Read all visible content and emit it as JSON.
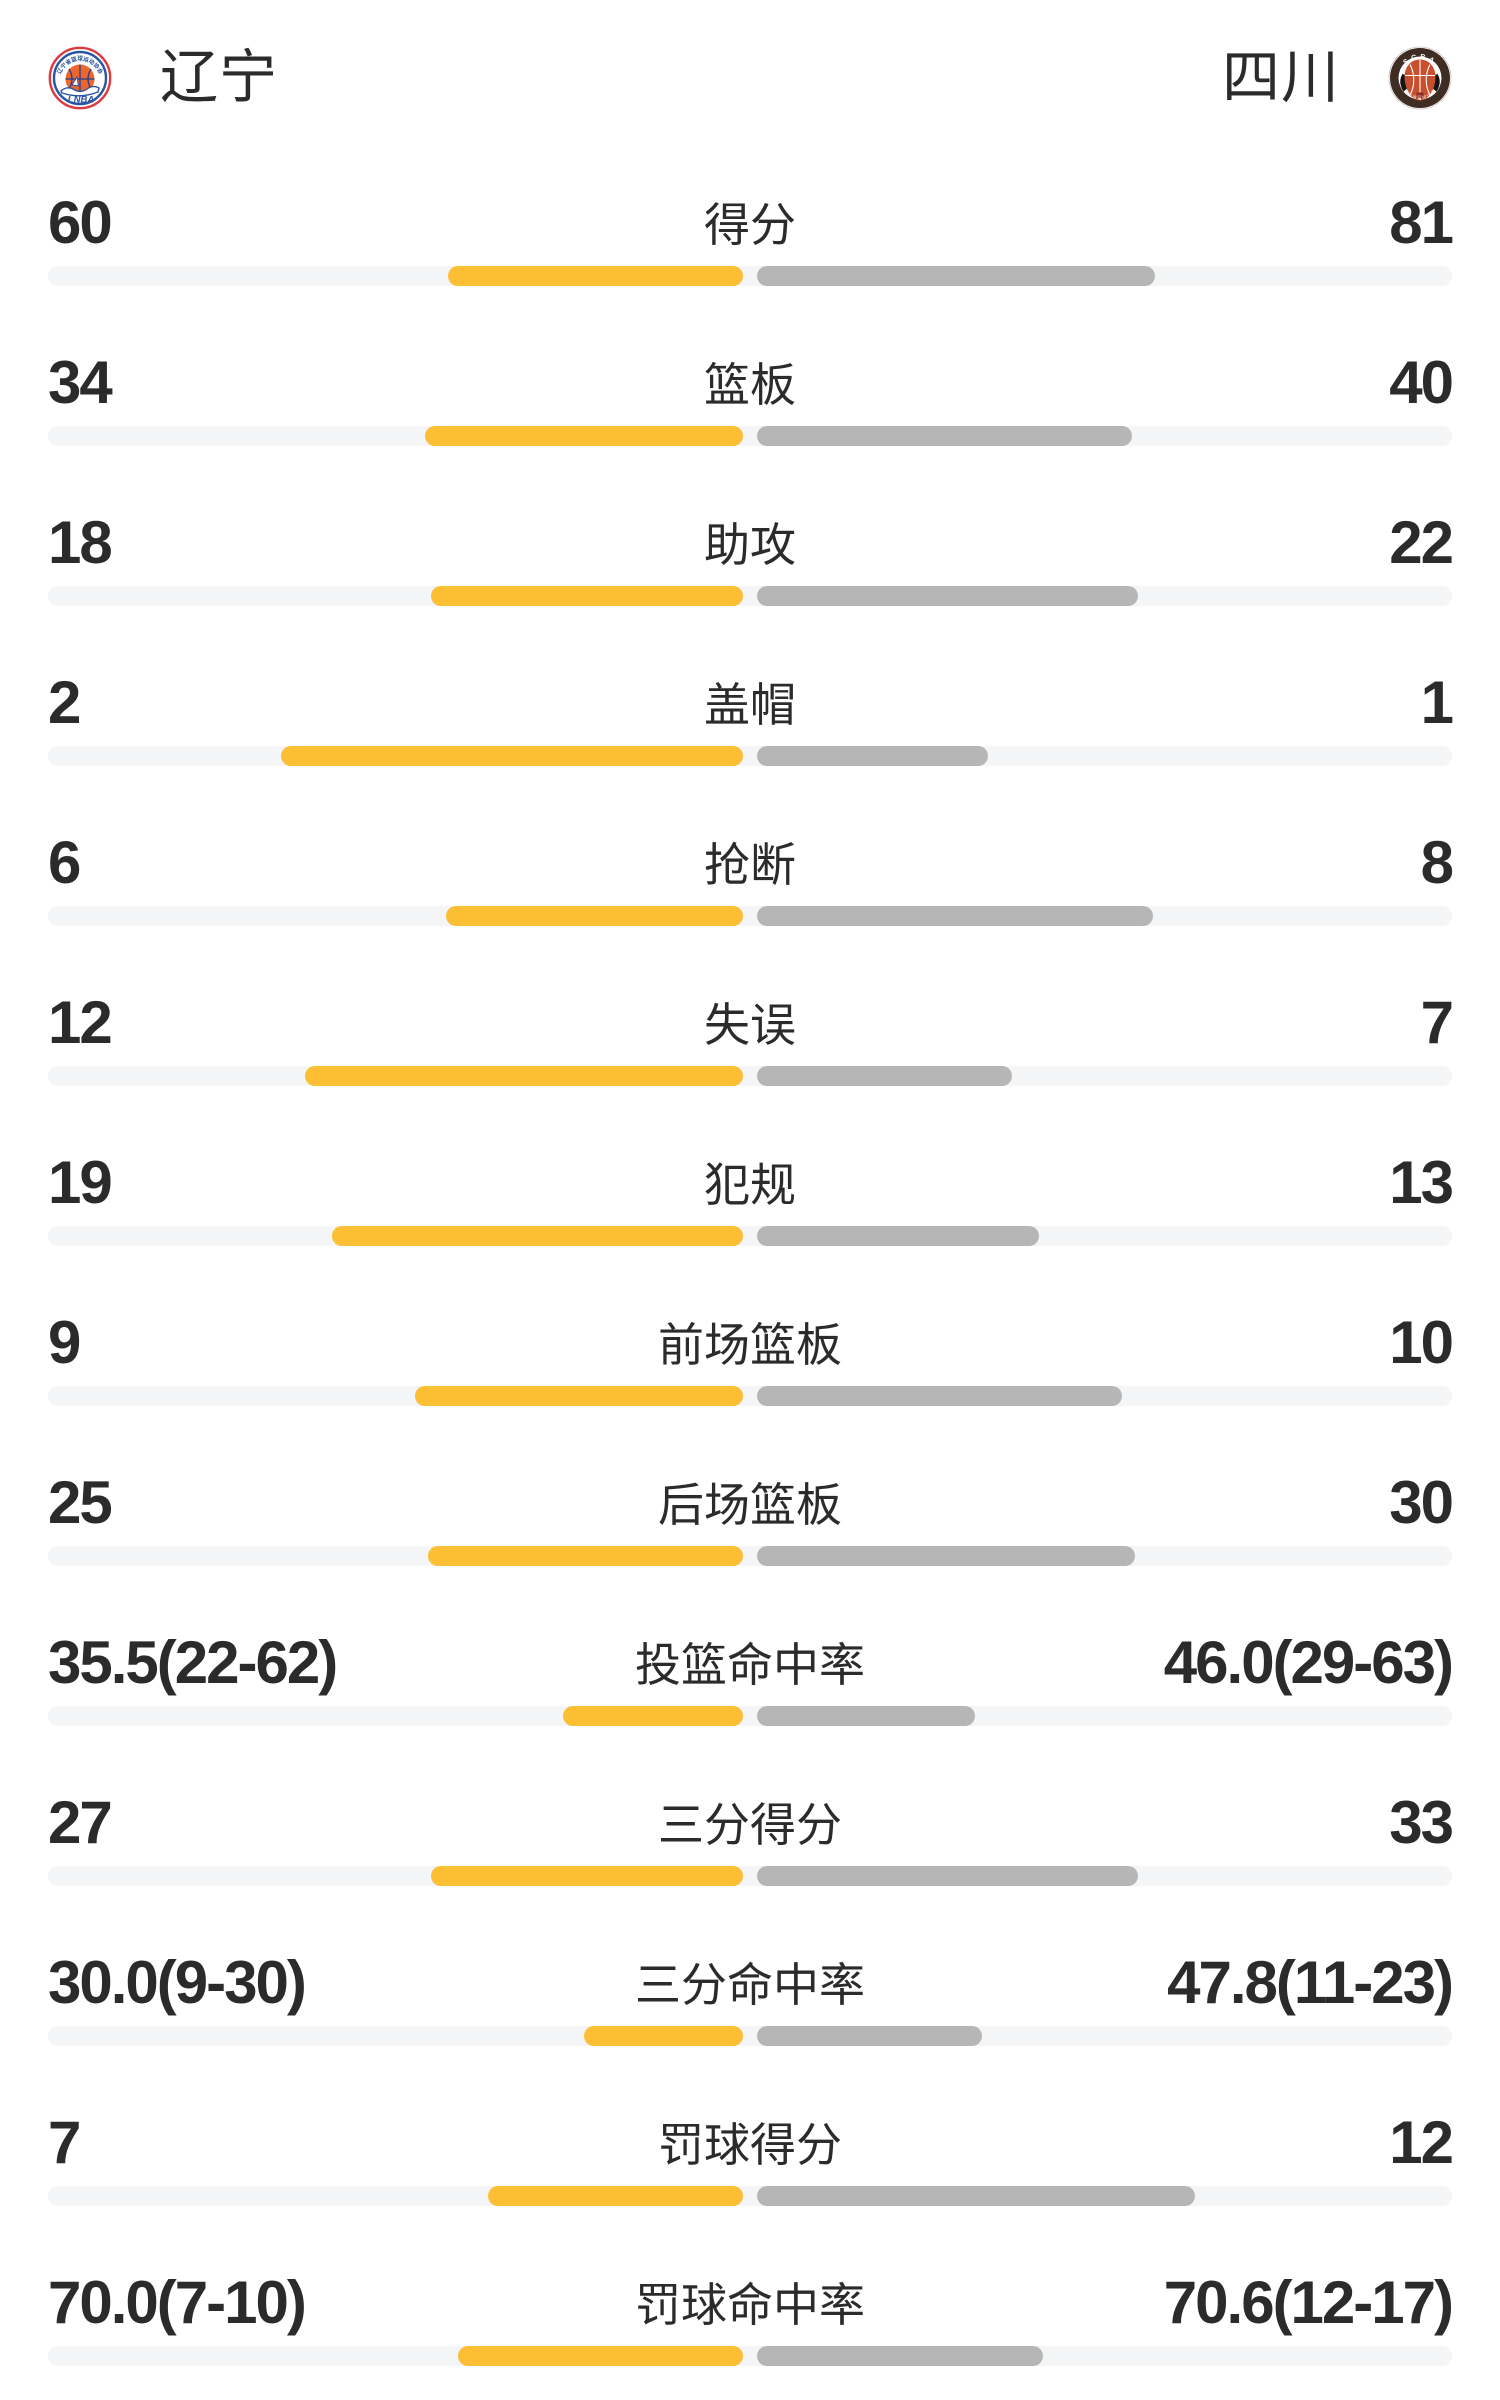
{
  "header": {
    "home": {
      "name": "辽宁",
      "logo": "lnba-liaoning-badge",
      "logo_text": "LNBA",
      "logo_arc_text": "辽宁省篮球运动协会"
    },
    "away": {
      "name": "四川",
      "logo": "scba-sichuan-badge",
      "logo_text": "SCBA",
      "logo_arc_text": "四川省篮球协会"
    }
  },
  "colors": {
    "home_bar": "#fcbe33",
    "away_bar": "#b6b6b6",
    "track": "#f4f5f7",
    "text_primary": "#2b2b2b",
    "background": "#ffffff"
  },
  "chart_data": {
    "type": "bar",
    "layout": "mirrored-horizontal-pairs-from-center",
    "home_team": "辽宁",
    "away_team": "四川",
    "legend_position": "none",
    "grid": false,
    "rows": [
      {
        "label": "得分",
        "home": "60",
        "away": "81",
        "home_num": 60,
        "away_num": 81,
        "home_pct": 21.01,
        "away_pct": 28.36
      },
      {
        "label": "篮板",
        "home": "34",
        "away": "40",
        "home_num": 34,
        "away_num": 40,
        "home_pct": 22.68,
        "away_pct": 26.68
      },
      {
        "label": "助攻",
        "home": "18",
        "away": "22",
        "home_num": 18,
        "away_num": 22,
        "home_pct": 22.21,
        "away_pct": 27.15
      },
      {
        "label": "盖帽",
        "home": "2",
        "away": "1",
        "home_num": 2,
        "away_num": 1,
        "home_pct": 32.91,
        "away_pct": 16.45
      },
      {
        "label": "抢断",
        "home": "6",
        "away": "8",
        "home_num": 6,
        "away_num": 8,
        "home_pct": 21.15,
        "away_pct": 28.21
      },
      {
        "label": "失误",
        "home": "12",
        "away": "7",
        "home_num": 12,
        "away_num": 7,
        "home_pct": 31.17,
        "away_pct": 18.18
      },
      {
        "label": "犯规",
        "home": "19",
        "away": "13",
        "home_num": 19,
        "away_num": 13,
        "home_pct": 29.31,
        "away_pct": 20.06
      },
      {
        "label": "前场篮板",
        "home": "9",
        "away": "10",
        "home_num": 9,
        "away_num": 10,
        "home_pct": 23.38,
        "away_pct": 25.98
      },
      {
        "label": "后场篮板",
        "home": "25",
        "away": "30",
        "home_num": 25,
        "away_num": 30,
        "home_pct": 22.44,
        "away_pct": 26.93
      },
      {
        "label": "投篮命中率",
        "home": "35.5(22-62)",
        "away": "46.0(29-63)",
        "home_num": 35.5,
        "away_num": 46.0,
        "home_pct": 12.8,
        "away_pct": 15.5
      },
      {
        "label": "三分得分",
        "home": "27",
        "away": "33",
        "home_num": 27,
        "away_num": 33,
        "home_pct": 22.21,
        "away_pct": 27.15
      },
      {
        "label": "三分命中率",
        "home": "30.0(9-30)",
        "away": "47.8(11-23)",
        "home_num": 30.0,
        "away_num": 47.8,
        "home_pct": 11.3,
        "away_pct": 16.0
      },
      {
        "label": "罚球得分",
        "home": "7",
        "away": "12",
        "home_num": 7,
        "away_num": 12,
        "home_pct": 18.18,
        "away_pct": 31.17
      },
      {
        "label": "罚球命中率",
        "home": "70.0(7-10)",
        "away": "70.6(12-17)",
        "home_num": 70.0,
        "away_num": 70.6,
        "home_pct": 20.3,
        "away_pct": 20.4
      }
    ]
  }
}
